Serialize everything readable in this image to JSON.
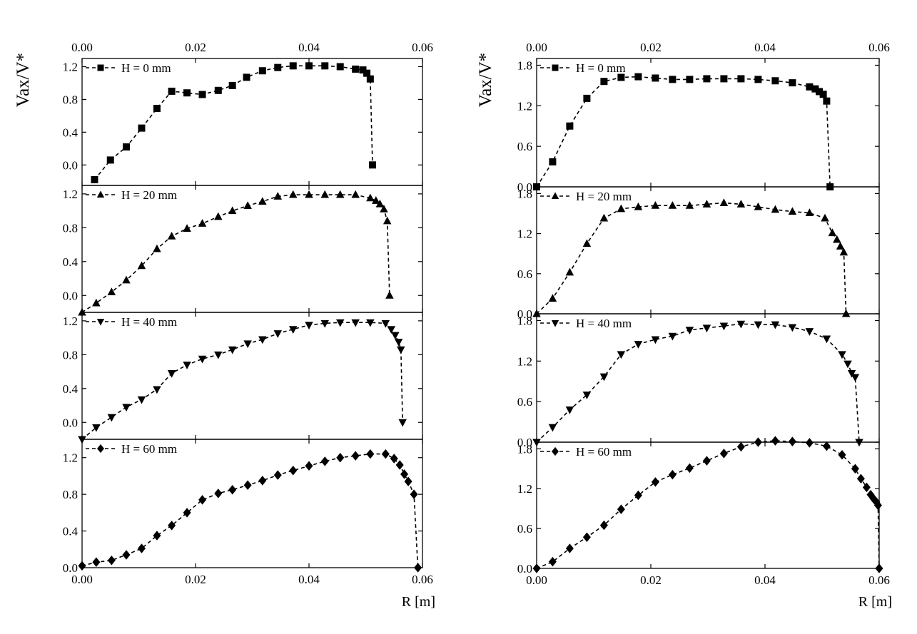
{
  "figure": {
    "ylabel": "Vax/V*",
    "xlabel": "R [m]"
  },
  "chart_data": [
    {
      "type": "scatter",
      "panel": "left",
      "xlabel": "R [m]",
      "ylabel": "Vax/V*",
      "x_range": [
        0,
        0.06
      ],
      "x_ticks": [
        "0.00",
        "0.02",
        "0.04",
        "0.06"
      ],
      "line_style": "dashed",
      "subplots": [
        {
          "legend": "H = 0 mm",
          "marker": "square",
          "ylim": [
            -0.25,
            1.3
          ],
          "y_ticks": [
            "0.0",
            "0.4",
            "0.8",
            "1.2"
          ],
          "x": [
            0.0022,
            0.005,
            0.0078,
            0.0105,
            0.0132,
            0.0158,
            0.0185,
            0.0212,
            0.024,
            0.0265,
            0.029,
            0.0318,
            0.0345,
            0.0372,
            0.04,
            0.0428,
            0.0455,
            0.0482,
            0.0495,
            0.0502,
            0.0508,
            0.0512
          ],
          "y": [
            -0.18,
            0.06,
            0.22,
            0.45,
            0.69,
            0.9,
            0.88,
            0.86,
            0.91,
            0.97,
            1.07,
            1.15,
            1.19,
            1.21,
            1.21,
            1.21,
            1.2,
            1.17,
            1.16,
            1.12,
            1.05,
            0.0
          ]
        },
        {
          "legend": "H = 20 mm",
          "marker": "triangle-up",
          "ylim": [
            -0.2,
            1.3
          ],
          "y_ticks": [
            "0.0",
            "0.4",
            "0.8",
            "1.2"
          ],
          "x": [
            0.0,
            0.0025,
            0.0052,
            0.0078,
            0.0105,
            0.0132,
            0.0158,
            0.0185,
            0.0212,
            0.024,
            0.0265,
            0.0292,
            0.0318,
            0.0345,
            0.0372,
            0.04,
            0.0428,
            0.0455,
            0.0482,
            0.0508,
            0.0518,
            0.0525,
            0.0532,
            0.0538,
            0.0542
          ],
          "y": [
            -0.2,
            -0.09,
            0.04,
            0.18,
            0.35,
            0.55,
            0.7,
            0.79,
            0.85,
            0.93,
            1.0,
            1.06,
            1.11,
            1.17,
            1.19,
            1.19,
            1.19,
            1.19,
            1.19,
            1.15,
            1.12,
            1.08,
            1.02,
            0.88,
            0.0
          ]
        },
        {
          "legend": "H = 40 mm",
          "marker": "triangle-down",
          "ylim": [
            -0.2,
            1.3
          ],
          "y_ticks": [
            "0.0",
            "0.4",
            "0.8",
            "1.2"
          ],
          "x": [
            0.0,
            0.0025,
            0.0052,
            0.0078,
            0.0105,
            0.0132,
            0.0158,
            0.0185,
            0.0212,
            0.024,
            0.0265,
            0.0292,
            0.0318,
            0.0345,
            0.0372,
            0.04,
            0.0428,
            0.0455,
            0.0482,
            0.0508,
            0.0535,
            0.0545,
            0.0552,
            0.0558,
            0.0562,
            0.0565
          ],
          "y": [
            -0.2,
            -0.06,
            0.06,
            0.18,
            0.27,
            0.39,
            0.58,
            0.68,
            0.75,
            0.8,
            0.86,
            0.93,
            0.98,
            1.05,
            1.1,
            1.15,
            1.17,
            1.18,
            1.18,
            1.18,
            1.17,
            1.1,
            1.03,
            0.95,
            0.86,
            0.0
          ]
        },
        {
          "legend": "H = 60 mm",
          "marker": "diamond",
          "ylim": [
            0,
            1.4
          ],
          "y_ticks": [
            "0.0",
            "0.4",
            "0.8",
            "1.2"
          ],
          "x": [
            0.0,
            0.0025,
            0.0052,
            0.0078,
            0.0105,
            0.0132,
            0.0158,
            0.0185,
            0.0212,
            0.024,
            0.0265,
            0.0292,
            0.0318,
            0.0345,
            0.0372,
            0.04,
            0.0428,
            0.0455,
            0.0482,
            0.0508,
            0.0535,
            0.055,
            0.056,
            0.0568,
            0.0575,
            0.0585,
            0.0592
          ],
          "y": [
            0.02,
            0.06,
            0.08,
            0.14,
            0.21,
            0.35,
            0.46,
            0.6,
            0.74,
            0.81,
            0.85,
            0.9,
            0.95,
            1.01,
            1.06,
            1.11,
            1.16,
            1.2,
            1.22,
            1.24,
            1.24,
            1.19,
            1.12,
            1.02,
            0.94,
            0.8,
            0.0
          ]
        }
      ]
    },
    {
      "type": "scatter",
      "panel": "right",
      "xlabel": "R [m]",
      "ylabel": "Vax/V*",
      "x_range": [
        0,
        0.06
      ],
      "x_ticks": [
        "0.00",
        "0.02",
        "0.04",
        "0.06"
      ],
      "line_style": "dashed",
      "subplots": [
        {
          "legend": "H = 0 mm",
          "marker": "square",
          "ylim": [
            0,
            1.9
          ],
          "y_ticks": [
            "0.0",
            "0.6",
            "1.2",
            "1.8"
          ],
          "x": [
            0.0,
            0.0028,
            0.0058,
            0.0088,
            0.0118,
            0.0148,
            0.0178,
            0.0208,
            0.0238,
            0.0268,
            0.0298,
            0.0328,
            0.0358,
            0.0388,
            0.0418,
            0.0448,
            0.0478,
            0.0488,
            0.0495,
            0.0502,
            0.0508,
            0.0514
          ],
          "y": [
            0.0,
            0.37,
            0.9,
            1.31,
            1.56,
            1.62,
            1.63,
            1.61,
            1.59,
            1.59,
            1.6,
            1.6,
            1.6,
            1.59,
            1.57,
            1.54,
            1.48,
            1.45,
            1.41,
            1.37,
            1.27,
            0.0
          ]
        },
        {
          "legend": "H = 20 mm",
          "marker": "triangle-up",
          "ylim": [
            0,
            1.9
          ],
          "y_ticks": [
            "0.0",
            "0.6",
            "1.2",
            "1.8"
          ],
          "x": [
            0.0,
            0.0028,
            0.0058,
            0.0088,
            0.0118,
            0.0148,
            0.0178,
            0.0208,
            0.0238,
            0.0268,
            0.0298,
            0.0328,
            0.0358,
            0.0388,
            0.0418,
            0.0448,
            0.0478,
            0.0505,
            0.0518,
            0.0526,
            0.0532,
            0.0538,
            0.0542
          ],
          "y": [
            0.0,
            0.23,
            0.62,
            1.05,
            1.43,
            1.57,
            1.6,
            1.62,
            1.62,
            1.62,
            1.64,
            1.66,
            1.64,
            1.6,
            1.56,
            1.53,
            1.51,
            1.43,
            1.21,
            1.11,
            1.01,
            0.92,
            0.0
          ]
        },
        {
          "legend": "H = 40 mm",
          "marker": "triangle-down",
          "ylim": [
            0,
            1.9
          ],
          "y_ticks": [
            "0.0",
            "0.6",
            "1.2",
            "1.8"
          ],
          "x": [
            0.0,
            0.0028,
            0.0058,
            0.0088,
            0.0118,
            0.0148,
            0.0178,
            0.0208,
            0.0238,
            0.0268,
            0.0298,
            0.0328,
            0.0358,
            0.0388,
            0.0418,
            0.0448,
            0.0478,
            0.0508,
            0.0535,
            0.0545,
            0.0552,
            0.0558,
            0.0565
          ],
          "y": [
            0.0,
            0.22,
            0.48,
            0.7,
            0.97,
            1.3,
            1.45,
            1.52,
            1.57,
            1.66,
            1.69,
            1.72,
            1.75,
            1.74,
            1.74,
            1.7,
            1.64,
            1.53,
            1.3,
            1.16,
            1.02,
            0.96,
            0.0
          ]
        },
        {
          "legend": "H = 60 mm",
          "marker": "diamond",
          "ylim": [
            0,
            1.9
          ],
          "y_ticks": [
            "0.0",
            "0.6",
            "1.2",
            "1.8"
          ],
          "x": [
            0.0,
            0.0028,
            0.0058,
            0.0088,
            0.0118,
            0.0148,
            0.0178,
            0.0208,
            0.0238,
            0.0268,
            0.0298,
            0.0328,
            0.0358,
            0.0388,
            0.0418,
            0.0448,
            0.0478,
            0.0508,
            0.0535,
            0.0558,
            0.0568,
            0.0578,
            0.0585,
            0.059,
            0.0595,
            0.0598,
            0.06
          ],
          "y": [
            0.0,
            0.1,
            0.3,
            0.47,
            0.65,
            0.89,
            1.1,
            1.3,
            1.41,
            1.51,
            1.62,
            1.73,
            1.83,
            1.9,
            1.92,
            1.91,
            1.89,
            1.84,
            1.71,
            1.5,
            1.35,
            1.22,
            1.11,
            1.05,
            1.0,
            0.95,
            0.0
          ]
        }
      ]
    }
  ]
}
